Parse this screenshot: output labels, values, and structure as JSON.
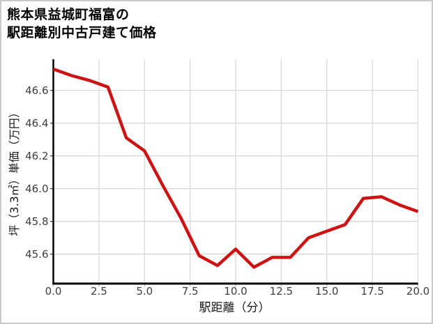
{
  "header": {
    "title_line1": "熊本県益城町福富の",
    "title_line2": "駅距離別中古戸建て価格"
  },
  "chart_data": {
    "type": "line",
    "title": "熊本県益城町福富の駅距離別中古戸建て価格",
    "xlabel": "駅距離（分）",
    "ylabel": "坪（3.3㎡）単価（万円）",
    "x": [
      0,
      1,
      2,
      3,
      4,
      5,
      6,
      7,
      8,
      9,
      10,
      11,
      12,
      13,
      14,
      15,
      16,
      17,
      18,
      19,
      20
    ],
    "values": [
      46.73,
      46.69,
      46.66,
      46.62,
      46.31,
      46.23,
      46.02,
      45.82,
      45.59,
      45.53,
      45.63,
      45.52,
      45.58,
      45.58,
      45.7,
      45.74,
      45.78,
      45.94,
      45.95,
      45.9,
      45.86
    ],
    "xlim": [
      0,
      20
    ],
    "ylim": [
      45.42,
      46.79
    ],
    "xtick_values": [
      0,
      2.5,
      5,
      7.5,
      10,
      12.5,
      15,
      17.5,
      20
    ],
    "xtick_labels": [
      "0.0",
      "2.5",
      "5.0",
      "7.5",
      "10.0",
      "12.5",
      "15.0",
      "17.5",
      "20.0"
    ],
    "ytick_values": [
      45.6,
      45.8,
      46.0,
      46.2,
      46.4,
      46.6
    ],
    "ytick_labels": [
      "45.6",
      "45.8",
      "46.0",
      "46.2",
      "46.4",
      "46.6"
    ],
    "grid": true,
    "legend": false,
    "colors": {
      "line": "#cc1414",
      "grid": "#d9d9d9",
      "spine": "#000000",
      "tick_label": "#3d3d3d",
      "x_tick_mark": "#bcbcbc",
      "y_tick_mark": "#444444"
    }
  }
}
